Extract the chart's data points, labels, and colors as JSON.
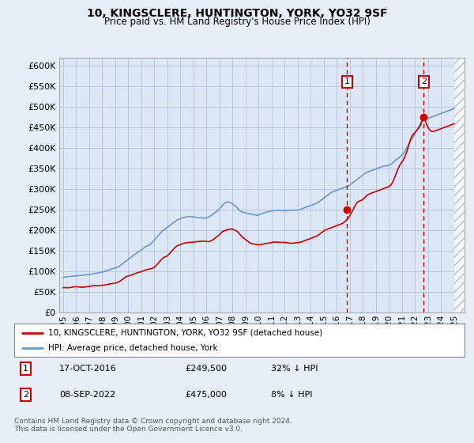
{
  "title": "10, KINGSCLERE, HUNTINGTON, YORK, YO32 9SF",
  "subtitle": "Price paid vs. HM Land Registry's House Price Index (HPI)",
  "bg_color": "#e8eef8",
  "plot_bg_color": "#dce6f5",
  "grid_color": "#b8c8e0",
  "hpi_color": "#6699cc",
  "price_color": "#cc0000",
  "vline_color": "#cc0000",
  "ylim": [
    0,
    620000
  ],
  "yticks": [
    0,
    50000,
    100000,
    150000,
    200000,
    250000,
    300000,
    350000,
    400000,
    450000,
    500000,
    550000,
    600000
  ],
  "ytick_labels": [
    "£0",
    "£50K",
    "£100K",
    "£150K",
    "£200K",
    "£250K",
    "£300K",
    "£350K",
    "£400K",
    "£450K",
    "£500K",
    "£550K",
    "£600K"
  ],
  "sale1_date": 2016.79,
  "sale1_price": 249500,
  "sale2_date": 2022.67,
  "sale2_price": 475000,
  "legend_line1": "10, KINGSCLERE, HUNTINGTON, YORK, YO32 9SF (detached house)",
  "legend_line2": "HPI: Average price, detached house, York",
  "footnote": "Contains HM Land Registry data © Crown copyright and database right 2024.\nThis data is licensed under the Open Government Licence v3.0.",
  "hpi_x": [
    1995.0,
    1995.083,
    1995.167,
    1995.25,
    1995.333,
    1995.417,
    1995.5,
    1995.583,
    1995.667,
    1995.75,
    1995.833,
    1995.917,
    1996.0,
    1996.083,
    1996.167,
    1996.25,
    1996.333,
    1996.417,
    1996.5,
    1996.583,
    1996.667,
    1996.75,
    1996.833,
    1996.917,
    1997.0,
    1997.083,
    1997.167,
    1997.25,
    1997.333,
    1997.417,
    1997.5,
    1997.583,
    1997.667,
    1997.75,
    1997.833,
    1997.917,
    1998.0,
    1998.083,
    1998.167,
    1998.25,
    1998.333,
    1998.417,
    1998.5,
    1998.583,
    1998.667,
    1998.75,
    1998.833,
    1998.917,
    1999.0,
    1999.083,
    1999.167,
    1999.25,
    1999.333,
    1999.417,
    1999.5,
    1999.583,
    1999.667,
    1999.75,
    1999.833,
    1999.917,
    2000.0,
    2000.083,
    2000.167,
    2000.25,
    2000.333,
    2000.417,
    2000.5,
    2000.583,
    2000.667,
    2000.75,
    2000.833,
    2000.917,
    2001.0,
    2001.083,
    2001.167,
    2001.25,
    2001.333,
    2001.417,
    2001.5,
    2001.583,
    2001.667,
    2001.75,
    2001.833,
    2001.917,
    2002.0,
    2002.083,
    2002.167,
    2002.25,
    2002.333,
    2002.417,
    2002.5,
    2002.583,
    2002.667,
    2002.75,
    2002.833,
    2002.917,
    2003.0,
    2003.083,
    2003.167,
    2003.25,
    2003.333,
    2003.417,
    2003.5,
    2003.583,
    2003.667,
    2003.75,
    2003.833,
    2003.917,
    2004.0,
    2004.083,
    2004.167,
    2004.25,
    2004.333,
    2004.417,
    2004.5,
    2004.583,
    2004.667,
    2004.75,
    2004.833,
    2004.917,
    2005.0,
    2005.083,
    2005.167,
    2005.25,
    2005.333,
    2005.417,
    2005.5,
    2005.583,
    2005.667,
    2005.75,
    2005.833,
    2005.917,
    2006.0,
    2006.083,
    2006.167,
    2006.25,
    2006.333,
    2006.417,
    2006.5,
    2006.583,
    2006.667,
    2006.75,
    2006.833,
    2006.917,
    2007.0,
    2007.083,
    2007.167,
    2007.25,
    2007.333,
    2007.417,
    2007.5,
    2007.583,
    2007.667,
    2007.75,
    2007.833,
    2007.917,
    2008.0,
    2008.083,
    2008.167,
    2008.25,
    2008.333,
    2008.417,
    2008.5,
    2008.583,
    2008.667,
    2008.75,
    2008.833,
    2008.917,
    2009.0,
    2009.083,
    2009.167,
    2009.25,
    2009.333,
    2009.417,
    2009.5,
    2009.583,
    2009.667,
    2009.75,
    2009.833,
    2009.917,
    2010.0,
    2010.083,
    2010.167,
    2010.25,
    2010.333,
    2010.417,
    2010.5,
    2010.583,
    2010.667,
    2010.75,
    2010.833,
    2010.917,
    2011.0,
    2011.083,
    2011.167,
    2011.25,
    2011.333,
    2011.417,
    2011.5,
    2011.583,
    2011.667,
    2011.75,
    2011.833,
    2011.917,
    2012.0,
    2012.083,
    2012.167,
    2012.25,
    2012.333,
    2012.417,
    2012.5,
    2012.583,
    2012.667,
    2012.75,
    2012.833,
    2012.917,
    2013.0,
    2013.083,
    2013.167,
    2013.25,
    2013.333,
    2013.417,
    2013.5,
    2013.583,
    2013.667,
    2013.75,
    2013.833,
    2013.917,
    2014.0,
    2014.083,
    2014.167,
    2014.25,
    2014.333,
    2014.417,
    2014.5,
    2014.583,
    2014.667,
    2014.75,
    2014.833,
    2014.917,
    2015.0,
    2015.083,
    2015.167,
    2015.25,
    2015.333,
    2015.417,
    2015.5,
    2015.583,
    2015.667,
    2015.75,
    2015.833,
    2015.917,
    2016.0,
    2016.083,
    2016.167,
    2016.25,
    2016.333,
    2016.417,
    2016.5,
    2016.583,
    2016.667,
    2016.75,
    2016.833,
    2016.917,
    2017.0,
    2017.083,
    2017.167,
    2017.25,
    2017.333,
    2017.417,
    2017.5,
    2017.583,
    2017.667,
    2017.75,
    2017.833,
    2017.917,
    2018.0,
    2018.083,
    2018.167,
    2018.25,
    2018.333,
    2018.417,
    2018.5,
    2018.583,
    2018.667,
    2018.75,
    2018.833,
    2018.917,
    2019.0,
    2019.083,
    2019.167,
    2019.25,
    2019.333,
    2019.417,
    2019.5,
    2019.583,
    2019.667,
    2019.75,
    2019.833,
    2019.917,
    2020.0,
    2020.083,
    2020.167,
    2020.25,
    2020.333,
    2020.417,
    2020.5,
    2020.583,
    2020.667,
    2020.75,
    2020.833,
    2020.917,
    2021.0,
    2021.083,
    2021.167,
    2021.25,
    2021.333,
    2021.417,
    2021.5,
    2021.583,
    2021.667,
    2021.75,
    2021.833,
    2021.917,
    2022.0,
    2022.083,
    2022.167,
    2022.25,
    2022.333,
    2022.417,
    2022.5,
    2022.583,
    2022.667,
    2022.75,
    2022.833,
    2022.917,
    2023.0,
    2023.083,
    2023.167,
    2023.25,
    2023.333,
    2023.417,
    2023.5,
    2023.583,
    2023.667,
    2023.75,
    2023.833,
    2023.917,
    2024.0,
    2024.083,
    2024.167,
    2024.25,
    2024.333,
    2024.417,
    2024.5,
    2024.583,
    2024.667,
    2024.75,
    2024.833,
    2024.917,
    2025.0
  ],
  "hpi_y": [
    85000,
    85500,
    86000,
    86200,
    86500,
    87000,
    87200,
    87500,
    87800,
    88000,
    88200,
    88500,
    88800,
    89000,
    89300,
    89500,
    89700,
    90000,
    90200,
    90500,
    90800,
    91000,
    91200,
    91500,
    92000,
    92500,
    93000,
    93500,
    94000,
    94500,
    95000,
    95500,
    96000,
    96500,
    97000,
    97500,
    98000,
    98800,
    99500,
    100200,
    101000,
    102000,
    103000,
    104000,
    105000,
    106000,
    106500,
    107000,
    107500,
    108500,
    109500,
    111000,
    113000,
    115000,
    117000,
    119000,
    121000,
    123000,
    125000,
    127000,
    129000,
    131000,
    133000,
    135000,
    137000,
    139000,
    141000,
    143000,
    145000,
    147000,
    148500,
    150000,
    152000,
    154000,
    156000,
    158000,
    160000,
    161000,
    162000,
    163000,
    165000,
    167000,
    170000,
    173000,
    176000,
    179000,
    182000,
    185000,
    188000,
    191000,
    194000,
    197000,
    199000,
    201000,
    203000,
    205000,
    207000,
    209000,
    211000,
    213000,
    215000,
    217000,
    219000,
    221000,
    223000,
    225000,
    226000,
    227000,
    228000,
    229000,
    230000,
    231000,
    231500,
    232000,
    232500,
    232800,
    233000,
    233200,
    233000,
    232800,
    232500,
    232000,
    231500,
    231000,
    230500,
    230200,
    230000,
    229800,
    229500,
    229200,
    229000,
    229200,
    230000,
    231000,
    232000,
    233500,
    235000,
    237000,
    239000,
    241000,
    243000,
    245000,
    247000,
    249000,
    252000,
    255000,
    258000,
    261000,
    264000,
    266000,
    267000,
    268000,
    268500,
    268000,
    267000,
    266000,
    264000,
    262000,
    260000,
    258000,
    255000,
    252000,
    249000,
    247000,
    245000,
    244000,
    243500,
    243000,
    242000,
    241000,
    240500,
    240000,
    239500,
    239000,
    238500,
    238000,
    237500,
    237000,
    236500,
    236000,
    237000,
    238000,
    239000,
    240000,
    241000,
    242000,
    243000,
    244000,
    244500,
    245000,
    245500,
    246000,
    246500,
    247000,
    247500,
    247800,
    248000,
    248200,
    248000,
    247800,
    247500,
    247200,
    247000,
    247200,
    247500,
    247800,
    248000,
    248200,
    248000,
    248200,
    248500,
    248800,
    249000,
    249200,
    249000,
    248800,
    249000,
    249500,
    250000,
    251000,
    252000,
    253000,
    254000,
    255000,
    256000,
    257000,
    258000,
    259000,
    260000,
    261000,
    262000,
    263000,
    264000,
    265000,
    266500,
    268000,
    270000,
    272000,
    274000,
    276000,
    278000,
    280000,
    282000,
    284000,
    286000,
    288000,
    290000,
    292000,
    293000,
    294000,
    295000,
    296000,
    297000,
    298000,
    299000,
    300000,
    301000,
    302000,
    303000,
    304000,
    305000,
    306000,
    307000,
    308000,
    310000,
    312000,
    314000,
    316000,
    318000,
    320000,
    322000,
    324000,
    326000,
    328000,
    330000,
    332000,
    334000,
    336000,
    338000,
    340000,
    341000,
    342000,
    343000,
    344000,
    345000,
    346000,
    347000,
    348000,
    349000,
    350000,
    351000,
    352000,
    353000,
    354000,
    355000,
    355500,
    356000,
    356500,
    357000,
    357500,
    358000,
    359000,
    361000,
    363000,
    365000,
    368000,
    370000,
    372000,
    374000,
    376000,
    378000,
    380000,
    383000,
    386000,
    390000,
    394000,
    398000,
    403000,
    408000,
    413000,
    418000,
    422000,
    426000,
    430000,
    435000,
    440000,
    445000,
    450000,
    455000,
    460000,
    464000,
    467000,
    469000,
    470000,
    470500,
    471000,
    472000,
    473000,
    474000,
    475000,
    476000,
    477000,
    478000,
    479000,
    480000,
    481000,
    482000,
    483000,
    484000,
    485000,
    486000,
    487000,
    488000,
    489000,
    490000,
    491000,
    492000,
    493000,
    494000,
    495000,
    496000
  ],
  "price_x": [
    1995.0,
    1995.083,
    1995.167,
    1995.25,
    1995.333,
    1995.417,
    1995.5,
    1995.583,
    1995.667,
    1995.75,
    1995.833,
    1995.917,
    1996.0,
    1996.083,
    1996.167,
    1996.25,
    1996.333,
    1996.417,
    1996.5,
    1996.583,
    1996.667,
    1996.75,
    1996.833,
    1996.917,
    1997.0,
    1997.083,
    1997.167,
    1997.25,
    1997.333,
    1997.417,
    1997.5,
    1997.583,
    1997.667,
    1997.75,
    1997.833,
    1997.917,
    1998.0,
    1998.083,
    1998.167,
    1998.25,
    1998.333,
    1998.417,
    1998.5,
    1998.583,
    1998.667,
    1998.75,
    1998.833,
    1998.917,
    1999.0,
    1999.083,
    1999.167,
    1999.25,
    1999.333,
    1999.417,
    1999.5,
    1999.583,
    1999.667,
    1999.75,
    1999.833,
    1999.917,
    2000.0,
    2000.083,
    2000.167,
    2000.25,
    2000.333,
    2000.417,
    2000.5,
    2000.583,
    2000.667,
    2000.75,
    2000.833,
    2000.917,
    2001.0,
    2001.083,
    2001.167,
    2001.25,
    2001.333,
    2001.417,
    2001.5,
    2001.583,
    2001.667,
    2001.75,
    2001.833,
    2001.917,
    2002.0,
    2002.083,
    2002.167,
    2002.25,
    2002.333,
    2002.417,
    2002.5,
    2002.583,
    2002.667,
    2002.75,
    2002.833,
    2002.917,
    2003.0,
    2003.083,
    2003.167,
    2003.25,
    2003.333,
    2003.417,
    2003.5,
    2003.583,
    2003.667,
    2003.75,
    2003.833,
    2003.917,
    2004.0,
    2004.083,
    2004.167,
    2004.25,
    2004.333,
    2004.417,
    2004.5,
    2004.583,
    2004.667,
    2004.75,
    2004.833,
    2004.917,
    2005.0,
    2005.083,
    2005.167,
    2005.25,
    2005.333,
    2005.417,
    2005.5,
    2005.583,
    2005.667,
    2005.75,
    2005.833,
    2005.917,
    2006.0,
    2006.083,
    2006.167,
    2006.25,
    2006.333,
    2006.417,
    2006.5,
    2006.583,
    2006.667,
    2006.75,
    2006.833,
    2006.917,
    2007.0,
    2007.083,
    2007.167,
    2007.25,
    2007.333,
    2007.417,
    2007.5,
    2007.583,
    2007.667,
    2007.75,
    2007.833,
    2007.917,
    2008.0,
    2008.083,
    2008.167,
    2008.25,
    2008.333,
    2008.417,
    2008.5,
    2008.583,
    2008.667,
    2008.75,
    2008.833,
    2008.917,
    2009.0,
    2009.083,
    2009.167,
    2009.25,
    2009.333,
    2009.417,
    2009.5,
    2009.583,
    2009.667,
    2009.75,
    2009.833,
    2009.917,
    2010.0,
    2010.083,
    2010.167,
    2010.25,
    2010.333,
    2010.417,
    2010.5,
    2010.583,
    2010.667,
    2010.75,
    2010.833,
    2010.917,
    2011.0,
    2011.083,
    2011.167,
    2011.25,
    2011.333,
    2011.417,
    2011.5,
    2011.583,
    2011.667,
    2011.75,
    2011.833,
    2011.917,
    2012.0,
    2012.083,
    2012.167,
    2012.25,
    2012.333,
    2012.417,
    2012.5,
    2012.583,
    2012.667,
    2012.75,
    2012.833,
    2012.917,
    2013.0,
    2013.083,
    2013.167,
    2013.25,
    2013.333,
    2013.417,
    2013.5,
    2013.583,
    2013.667,
    2013.75,
    2013.833,
    2013.917,
    2014.0,
    2014.083,
    2014.167,
    2014.25,
    2014.333,
    2014.417,
    2014.5,
    2014.583,
    2014.667,
    2014.75,
    2014.833,
    2014.917,
    2015.0,
    2015.083,
    2015.167,
    2015.25,
    2015.333,
    2015.417,
    2015.5,
    2015.583,
    2015.667,
    2015.75,
    2015.833,
    2015.917,
    2016.0,
    2016.083,
    2016.167,
    2016.25,
    2016.333,
    2016.417,
    2016.5,
    2016.583,
    2016.667,
    2016.75,
    2016.833,
    2016.917,
    2017.0,
    2017.083,
    2017.167,
    2017.25,
    2017.333,
    2017.417,
    2017.5,
    2017.583,
    2017.667,
    2017.75,
    2017.833,
    2017.917,
    2018.0,
    2018.083,
    2018.167,
    2018.25,
    2018.333,
    2018.417,
    2018.5,
    2018.583,
    2018.667,
    2018.75,
    2018.833,
    2018.917,
    2019.0,
    2019.083,
    2019.167,
    2019.25,
    2019.333,
    2019.417,
    2019.5,
    2019.583,
    2019.667,
    2019.75,
    2019.833,
    2019.917,
    2020.0,
    2020.083,
    2020.167,
    2020.25,
    2020.333,
    2020.417,
    2020.5,
    2020.583,
    2020.667,
    2020.75,
    2020.833,
    2020.917,
    2021.0,
    2021.083,
    2021.167,
    2021.25,
    2021.333,
    2021.417,
    2021.5,
    2021.583,
    2021.667,
    2021.75,
    2021.833,
    2021.917,
    2022.0,
    2022.083,
    2022.167,
    2022.25,
    2022.333,
    2022.417,
    2022.5,
    2022.583,
    2022.667,
    2022.75,
    2022.833,
    2022.917,
    2023.0,
    2023.083,
    2023.167,
    2023.25,
    2023.333,
    2023.417,
    2023.5,
    2023.583,
    2023.667,
    2023.75,
    2023.833,
    2023.917,
    2024.0,
    2024.083,
    2024.167,
    2024.25,
    2024.333,
    2024.417,
    2024.5,
    2024.583,
    2024.667,
    2024.75,
    2024.833,
    2024.917,
    2025.0
  ],
  "price_y": [
    60000,
    60200,
    60100,
    60000,
    59800,
    59900,
    60000,
    60500,
    61000,
    61500,
    62000,
    62200,
    62000,
    61800,
    61500,
    61200,
    61000,
    60800,
    61000,
    61200,
    61500,
    62000,
    62200,
    62500,
    63000,
    63500,
    64000,
    64500,
    65000,
    65200,
    65000,
    64800,
    64500,
    64800,
    65000,
    65200,
    65500,
    65800,
    66200,
    66800,
    67500,
    68000,
    68500,
    69000,
    69500,
    70000,
    70200,
    70500,
    71000,
    72000,
    73000,
    74000,
    75500,
    77000,
    79000,
    81000,
    83000,
    85000,
    87000,
    88000,
    88500,
    89000,
    90000,
    91000,
    92000,
    93000,
    94000,
    95000,
    96000,
    97000,
    97500,
    98000,
    99000,
    100000,
    101000,
    102000,
    103000,
    104000,
    104500,
    105000,
    105500,
    106000,
    107000,
    108000,
    110000,
    112000,
    115000,
    118000,
    121000,
    124000,
    127000,
    130000,
    132000,
    134000,
    135000,
    136000,
    138000,
    140000,
    143000,
    146000,
    149000,
    152000,
    155000,
    158000,
    160000,
    162000,
    163000,
    164000,
    165000,
    166000,
    167000,
    168000,
    168500,
    169000,
    169500,
    170000,
    170200,
    170000,
    170200,
    170500,
    171000,
    171500,
    171800,
    172000,
    172000,
    172200,
    172500,
    172800,
    173000,
    173200,
    173000,
    172800,
    172500,
    172200,
    172000,
    173000,
    174000,
    175000,
    177000,
    179000,
    181000,
    183000,
    185000,
    187000,
    189000,
    192000,
    195000,
    197000,
    198000,
    199000,
    200000,
    201000,
    201500,
    202000,
    202500,
    203000,
    202000,
    201000,
    200000,
    199000,
    197000,
    195000,
    192000,
    189000,
    186000,
    183000,
    181000,
    179000,
    177000,
    175000,
    173000,
    171000,
    169000,
    168000,
    167000,
    166500,
    166000,
    165500,
    165000,
    164500,
    164000,
    164500,
    165000,
    165500,
    166000,
    166500,
    167000,
    167500,
    168000,
    168500,
    169000,
    169500,
    170000,
    170500,
    171000,
    171200,
    171000,
    170800,
    170500,
    170200,
    170000,
    169800,
    170000,
    170200,
    170000,
    169800,
    169500,
    169000,
    168500,
    168200,
    168000,
    168200,
    168500,
    168800,
    169000,
    169200,
    169500,
    170000,
    170500,
    171000,
    172000,
    173000,
    174000,
    175000,
    176000,
    177000,
    178000,
    179000,
    180000,
    181000,
    182000,
    183000,
    184000,
    185000,
    186500,
    188000,
    190000,
    192000,
    194000,
    196000,
    198000,
    200000,
    201000,
    202000,
    203000,
    204000,
    205000,
    206000,
    207000,
    208000,
    209000,
    210000,
    211000,
    212000,
    213000,
    214000,
    215000,
    216000,
    218000,
    220000,
    222000,
    225000,
    228000,
    231000,
    235000,
    240000,
    245000,
    250000,
    255000,
    260000,
    265000,
    268000,
    270000,
    271000,
    272000,
    273000,
    275000,
    277000,
    280000,
    283000,
    285000,
    287000,
    288000,
    289000,
    290000,
    291000,
    292000,
    293000,
    294000,
    295000,
    296000,
    297000,
    298000,
    299000,
    300000,
    301000,
    302000,
    303000,
    304000,
    305000,
    306000,
    308000,
    311000,
    315000,
    320000,
    326000,
    333000,
    340000,
    347000,
    353000,
    358000,
    362000,
    366000,
    370000,
    375000,
    381000,
    388000,
    396000,
    405000,
    414000,
    422000,
    428000,
    432000,
    435000,
    438000,
    441000,
    444000,
    447000,
    450000,
    455000,
    462000,
    470000,
    475000,
    470000,
    463000,
    455000,
    450000,
    446000,
    443000,
    441000,
    440000,
    440000,
    441000,
    442000,
    443000,
    444000,
    445000,
    446000,
    447000,
    448000,
    449000,
    450000,
    451000,
    452000,
    453000,
    454000,
    455000,
    456000,
    457000,
    458000,
    459000
  ],
  "xtick_years": [
    1995,
    1996,
    1997,
    1998,
    1999,
    2000,
    2001,
    2002,
    2003,
    2004,
    2005,
    2006,
    2007,
    2008,
    2009,
    2010,
    2011,
    2012,
    2013,
    2014,
    2015,
    2016,
    2017,
    2018,
    2019,
    2020,
    2021,
    2022,
    2023,
    2024,
    2025
  ]
}
